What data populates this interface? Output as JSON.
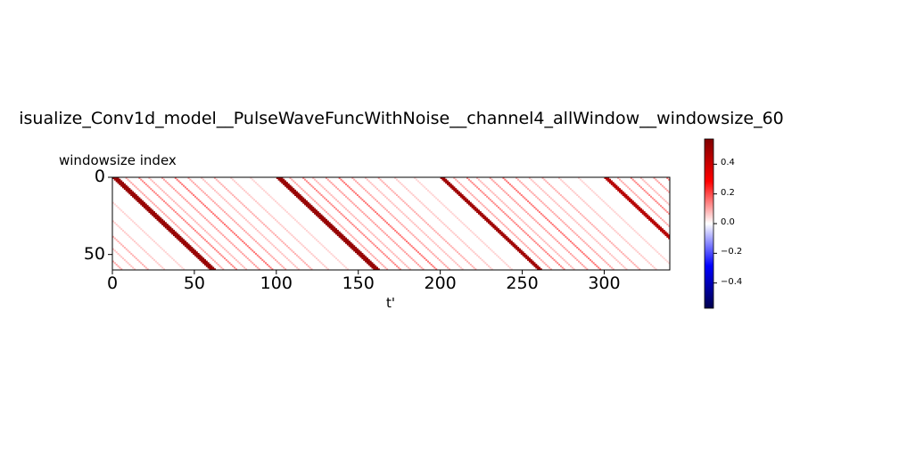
{
  "chart_data": {
    "type": "heatmap",
    "title": "isualize_Conv1d_model__PulseWaveFuncWithNoise__channel4_allWindow__windowsize_60",
    "xlabel": "t'",
    "ylabel": "windowsize index",
    "xlim": [
      0,
      340
    ],
    "ylim": [
      60,
      0
    ],
    "x_ticks": [
      "0",
      "50",
      "100",
      "150",
      "200",
      "250",
      "300"
    ],
    "y_ticks": [
      "0",
      "50"
    ],
    "colormap": "seismic",
    "colorbar": {
      "range": [
        -0.57,
        0.57
      ],
      "ticks": [
        "0.4",
        "0.2",
        "0.0",
        "−0.2",
        "−0.4"
      ],
      "tick_values": [
        0.4,
        0.2,
        0.0,
        -0.2,
        -0.4
      ]
    },
    "pulse_period": 100,
    "strong_bands": [
      {
        "start_t": 0,
        "width": 4,
        "value": 0.52
      },
      {
        "start_t": 100,
        "width": 4,
        "value": 0.52
      },
      {
        "start_t": 200,
        "width": 3,
        "value": 0.5
      },
      {
        "start_t": 300,
        "width": 3,
        "value": 0.45
      }
    ],
    "faint_band_offsets": [
      {
        "offset": 8,
        "value": 0.1
      },
      {
        "offset": 16,
        "value": 0.14
      },
      {
        "offset": 22,
        "value": 0.08
      },
      {
        "offset": 30,
        "value": 0.11
      },
      {
        "offset": 38,
        "value": 0.16
      },
      {
        "offset": 46,
        "value": 0.1
      },
      {
        "offset": 54,
        "value": 0.07
      },
      {
        "offset": 62,
        "value": 0.09
      },
      {
        "offset": 72,
        "value": 0.06
      },
      {
        "offset": 84,
        "value": 0.05
      }
    ]
  }
}
